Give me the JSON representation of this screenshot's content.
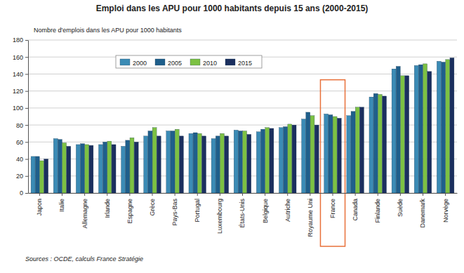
{
  "chart_data": {
    "type": "bar",
    "title": "Emploi dans les APU pour 1000 habitants depuis 15 ans (2000-2015)",
    "y_label": "Nombre d'emplois dans les APU pour 1000 habitants",
    "source": "Sources : OCDE, calculs France Stratégie",
    "categories": [
      "Japon",
      "Italie",
      "Allemagne",
      "Irlande",
      "Espagne",
      "Grèce",
      "Pays-Bas",
      "Portugal",
      "Luxembourg",
      "États-Unis",
      "Belgique",
      "Autriche",
      "Royaume Uni",
      "France",
      "Canada",
      "Finlande",
      "Suède",
      "Danemark",
      "Norvège"
    ],
    "series": [
      {
        "name": "2000",
        "color": "#3b8bb5",
        "values": [
          43,
          64,
          57,
          57,
          55,
          67,
          73,
          70,
          64,
          74,
          72,
          77,
          87,
          93,
          91,
          113,
          146,
          150,
          155
        ]
      },
      {
        "name": "2005",
        "color": "#1f5f8b",
        "values": [
          43,
          63,
          58,
          60,
          62,
          73,
          73,
          71,
          67,
          73,
          75,
          78,
          95,
          92,
          96,
          117,
          149,
          151,
          154
        ]
      },
      {
        "name": "2010",
        "color": "#7cc143",
        "values": [
          38,
          59,
          57,
          61,
          65,
          77,
          75,
          70,
          70,
          73,
          77,
          81,
          91,
          90,
          101,
          116,
          138,
          152,
          157
        ]
      },
      {
        "name": "2015",
        "color": "#1b2f5e",
        "values": [
          40,
          55,
          56,
          57,
          60,
          67,
          67,
          67,
          67,
          69,
          76,
          80,
          80,
          88,
          101,
          114,
          138,
          143,
          159
        ]
      }
    ],
    "ylim": [
      0,
      180
    ],
    "yticks": [
      0,
      20,
      40,
      60,
      80,
      100,
      120,
      140,
      160,
      180
    ],
    "grid": true,
    "legend": "top-left"
  }
}
